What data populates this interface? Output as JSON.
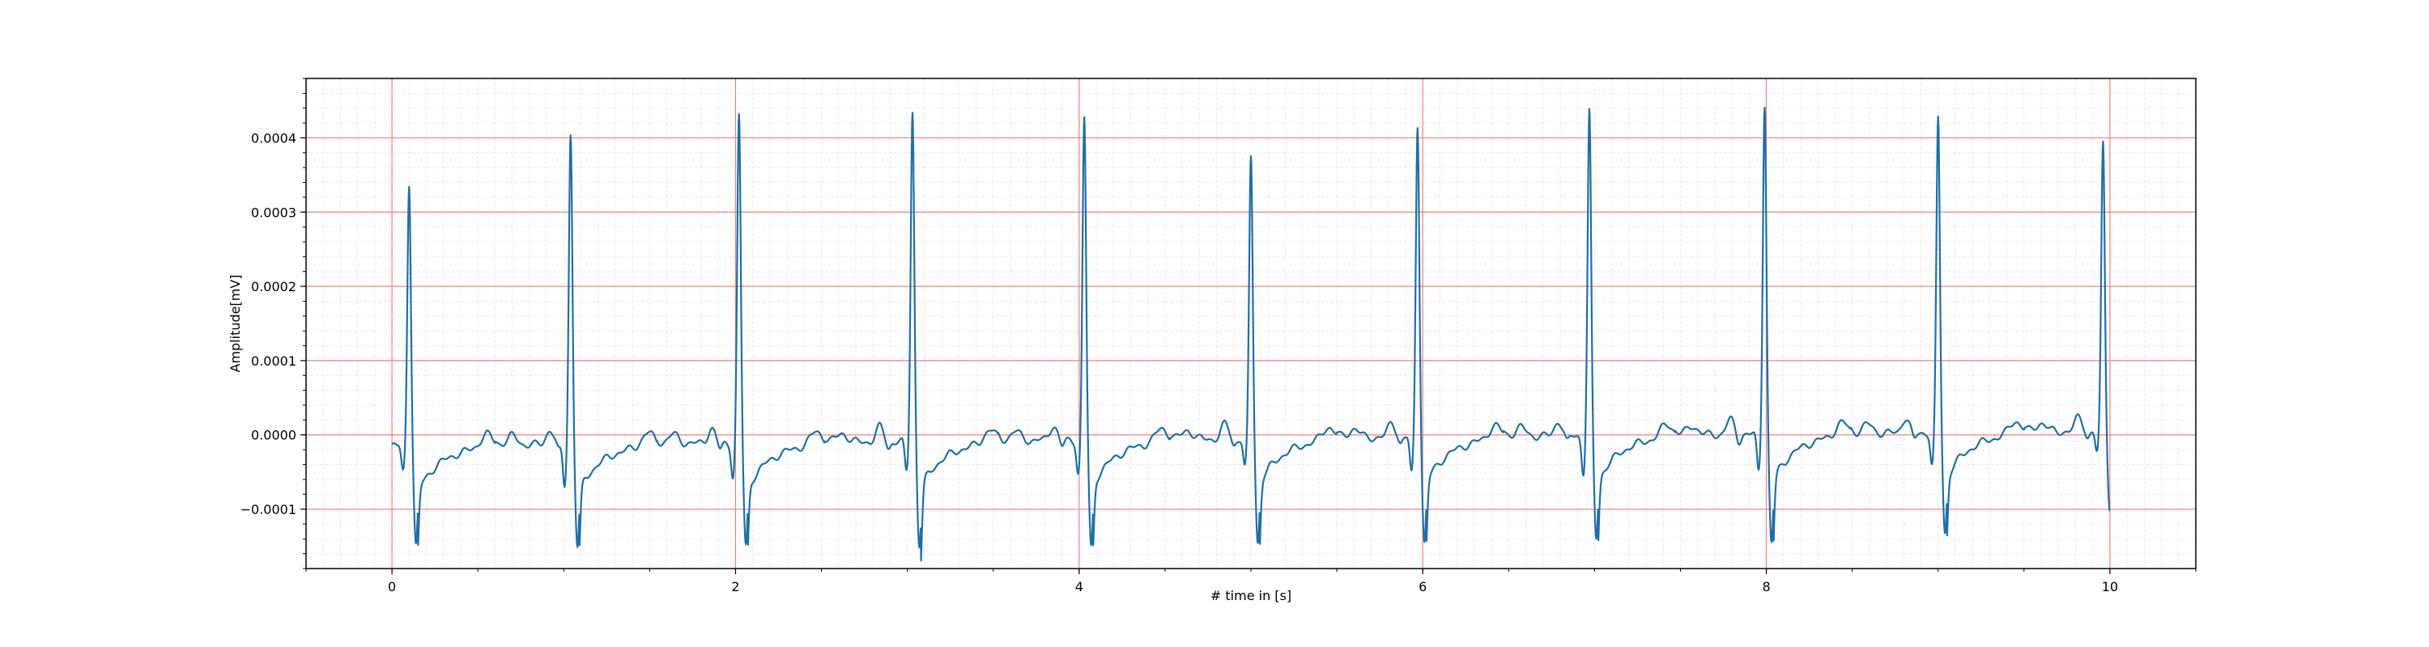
{
  "chart_data": {
    "type": "line",
    "title": "",
    "xlabel": "# time in [s]",
    "ylabel": "Amplitude[mV]",
    "xlim": [
      -0.5,
      10.5
    ],
    "ylim": [
      -0.00018,
      0.00048
    ],
    "x_ticks": [
      0,
      2,
      4,
      6,
      8,
      10
    ],
    "x_tick_labels": [
      "0",
      "2",
      "4",
      "6",
      "8",
      "10"
    ],
    "y_ticks": [
      -0.0001,
      0.0,
      0.0001,
      0.0002,
      0.0003,
      0.0004
    ],
    "y_tick_labels": [
      "−0.0001",
      "0.0000",
      "0.0001",
      "0.0002",
      "0.0003",
      "0.0004"
    ],
    "grid": true,
    "grid_major_color": "#f08080",
    "grid_minor_color": "#ffd6e0",
    "line_color": "#1f6fa6",
    "series": [
      {
        "x_start": 0.0,
        "x_end": 10.0,
        "baseline_start": -1.5e-05,
        "baseline_end": 5e-06,
        "beats": [
          {
            "t": 0.1,
            "r": 0.000355,
            "s": -0.000135,
            "q": -3.5e-05
          },
          {
            "t": 1.04,
            "r": 0.000418,
            "s": -0.000138,
            "q": -5.5e-05
          },
          {
            "t": 2.02,
            "r": 0.000441,
            "s": -0.000139,
            "q": -4.5e-05
          },
          {
            "t": 3.03,
            "r": 0.000445,
            "s": -0.00014,
            "q": -4e-05
          },
          {
            "t": 4.03,
            "r": 0.000434,
            "s": -0.000145,
            "q": -4.5e-05
          },
          {
            "t": 5.0,
            "r": 0.000381,
            "s": -0.00014,
            "q": -4e-05
          },
          {
            "t": 5.97,
            "r": 0.000422,
            "s": -0.000143,
            "q": -5e-05
          },
          {
            "t": 6.97,
            "r": 0.000436,
            "s": -0.000138,
            "q": -5e-05
          },
          {
            "t": 7.99,
            "r": 0.000445,
            "s": -0.000147,
            "q": -5e-05
          },
          {
            "t": 9.0,
            "r": 0.000424,
            "s": -0.000135,
            "q": -4.5e-05
          },
          {
            "t": 9.96,
            "r": 0.00039,
            "s": -0.000105,
            "q": -3e-05
          }
        ]
      }
    ]
  }
}
